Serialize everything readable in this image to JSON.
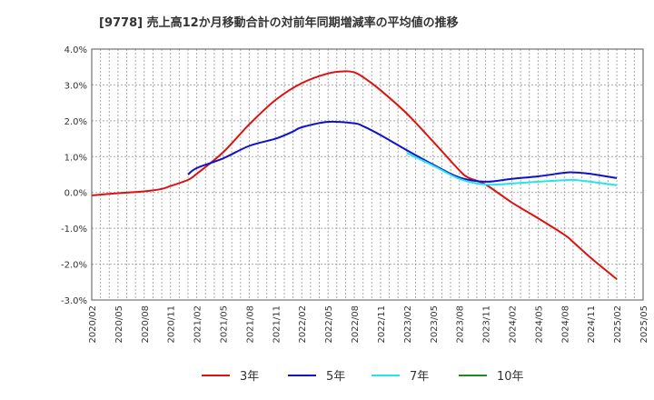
{
  "chart_data": {
    "type": "line",
    "title": "[9778]  売上高12か月移動合計の対前年同期増減率の平均値の推移",
    "xlabel": "",
    "ylabel": "",
    "ylim": [
      -3.0,
      4.0
    ],
    "y_ticks": [
      "4.0%",
      "3.0%",
      "2.0%",
      "1.0%",
      "0.0%",
      "-1.0%",
      "-2.0%",
      "-3.0%"
    ],
    "y_tick_values": [
      4,
      3,
      2,
      1,
      0,
      -1,
      -2,
      -3
    ],
    "x_ticks": [
      "2020/02",
      "2020/05",
      "2020/08",
      "2020/11",
      "2021/02",
      "2021/05",
      "2021/08",
      "2021/11",
      "2022/02",
      "2022/05",
      "2022/08",
      "2022/11",
      "2023/02",
      "2023/05",
      "2023/08",
      "2023/11",
      "2024/02",
      "2024/05",
      "2024/08",
      "2024/11",
      "2025/02",
      "2025/05"
    ],
    "grid": true,
    "legend_position": "bottom",
    "series": [
      {
        "name": "3年",
        "color": "#dd1111",
        "points": [
          [
            "2020/02",
            -0.08
          ],
          [
            "2020/05",
            -0.02
          ],
          [
            "2020/08",
            0.03
          ],
          [
            "2020/10",
            0.1
          ],
          [
            "2020/11",
            0.18
          ],
          [
            "2021/01",
            0.35
          ],
          [
            "2021/02",
            0.52
          ],
          [
            "2021/05",
            1.12
          ],
          [
            "2021/08",
            1.9
          ],
          [
            "2021/11",
            2.58
          ],
          [
            "2022/02",
            3.05
          ],
          [
            "2022/05",
            3.32
          ],
          [
            "2022/07",
            3.38
          ],
          [
            "2022/08",
            3.35
          ],
          [
            "2022/09",
            3.22
          ],
          [
            "2022/11",
            2.85
          ],
          [
            "2023/02",
            2.2
          ],
          [
            "2023/05",
            1.42
          ],
          [
            "2023/08",
            0.62
          ],
          [
            "2023/09",
            0.42
          ],
          [
            "2023/11",
            0.22
          ],
          [
            "2024/02",
            -0.28
          ],
          [
            "2024/05",
            -0.72
          ],
          [
            "2024/08",
            -1.18
          ],
          [
            "2024/09",
            -1.38
          ],
          [
            "2024/11",
            -1.82
          ],
          [
            "2025/02",
            -2.42
          ]
        ]
      },
      {
        "name": "5年",
        "color": "#1111cc",
        "points": [
          [
            "2021/01",
            0.5
          ],
          [
            "2021/02",
            0.68
          ],
          [
            "2021/05",
            0.95
          ],
          [
            "2021/08",
            1.3
          ],
          [
            "2021/11",
            1.5
          ],
          [
            "2022/01",
            1.7
          ],
          [
            "2022/02",
            1.82
          ],
          [
            "2022/05",
            1.97
          ],
          [
            "2022/08",
            1.93
          ],
          [
            "2022/09",
            1.85
          ],
          [
            "2022/11",
            1.6
          ],
          [
            "2023/02",
            1.18
          ],
          [
            "2023/05",
            0.78
          ],
          [
            "2023/08",
            0.42
          ],
          [
            "2023/11",
            0.3
          ],
          [
            "2024/02",
            0.38
          ],
          [
            "2024/05",
            0.45
          ],
          [
            "2024/08",
            0.55
          ],
          [
            "2024/09",
            0.56
          ],
          [
            "2024/11",
            0.52
          ],
          [
            "2025/02",
            0.4
          ]
        ]
      },
      {
        "name": "7年",
        "color": "#22e6ee",
        "points": [
          [
            "2023/02",
            1.1
          ],
          [
            "2023/05",
            0.75
          ],
          [
            "2023/08",
            0.38
          ],
          [
            "2023/11",
            0.22
          ],
          [
            "2024/02",
            0.25
          ],
          [
            "2024/05",
            0.3
          ],
          [
            "2024/08",
            0.34
          ],
          [
            "2024/09",
            0.35
          ],
          [
            "2024/11",
            0.3
          ],
          [
            "2025/02",
            0.2
          ]
        ]
      },
      {
        "name": "10年",
        "color": "#228822",
        "points": []
      }
    ]
  }
}
